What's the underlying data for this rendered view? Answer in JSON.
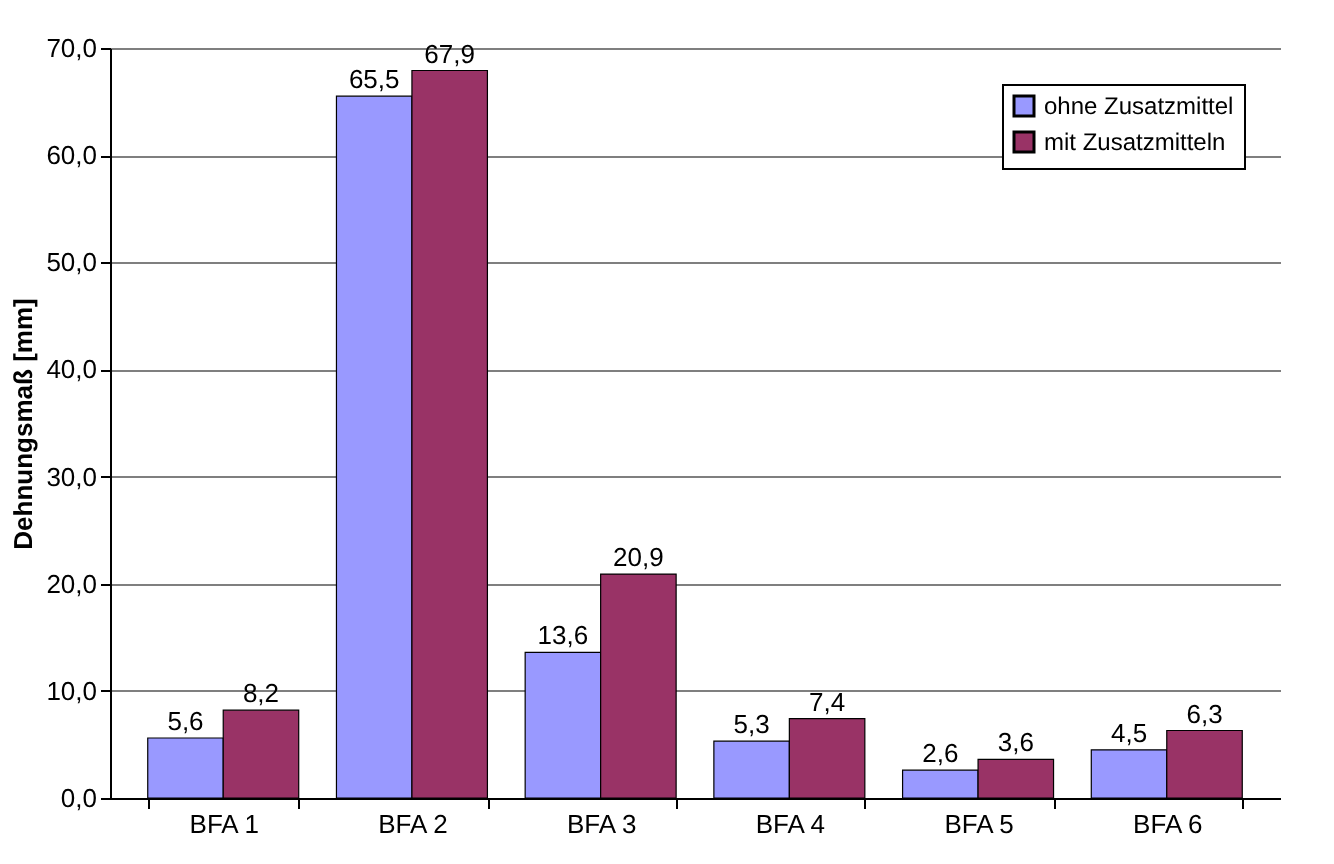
{
  "chart_data": {
    "type": "bar",
    "ylabel": "Dehnungsmaß  [mm]",
    "categories": [
      "BFA 1",
      "BFA 2",
      "BFA 3",
      "BFA 4",
      "BFA 5",
      "BFA 6"
    ],
    "series": [
      {
        "name": "ohne Zusatzmittel",
        "color": "#9999ff",
        "values": [
          5.6,
          65.5,
          13.6,
          5.3,
          2.6,
          4.5
        ],
        "value_labels": [
          "5,6",
          "65,5",
          "13,6",
          "5,3",
          "2,6",
          "4,5"
        ]
      },
      {
        "name": "mit Zusatzmitteln",
        "color": "#993366",
        "values": [
          8.2,
          67.9,
          20.9,
          7.4,
          3.6,
          6.3
        ],
        "value_labels": [
          "8,2",
          "67,9",
          "20,9",
          "7,4",
          "3,6",
          "6,3"
        ]
      }
    ],
    "ylim": [
      0,
      70
    ],
    "yticks": [
      {
        "value": 0,
        "label": "0,0"
      },
      {
        "value": 10,
        "label": "10,0"
      },
      {
        "value": 20,
        "label": "20,0"
      },
      {
        "value": 30,
        "label": "30,0"
      },
      {
        "value": 40,
        "label": "40,0"
      },
      {
        "value": 50,
        "label": "50,0"
      },
      {
        "value": 60,
        "label": "60,0"
      },
      {
        "value": 70,
        "label": "70,0"
      }
    ],
    "grid": "y",
    "legend": "top right"
  }
}
